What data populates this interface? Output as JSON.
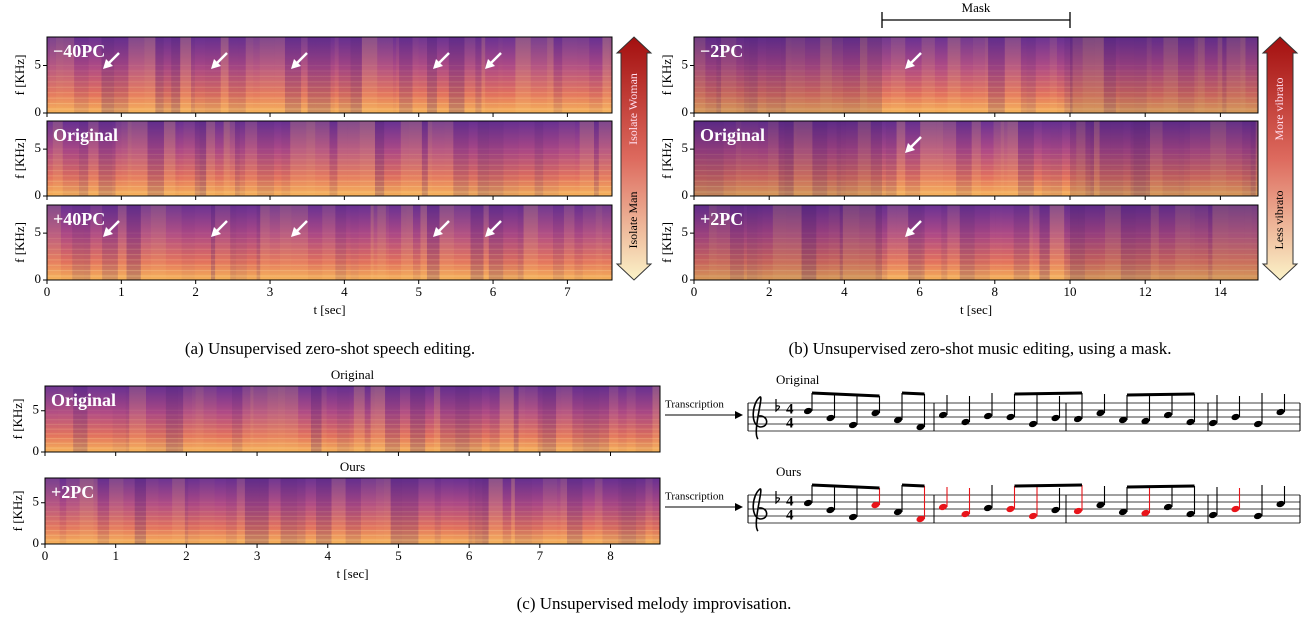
{
  "chart_data": [
    {
      "type": "spectrogram",
      "caption": "(a) Unsupervised zero-shot speech editing.",
      "xlabel": "t [sec]",
      "ylabel": "f [KHz]",
      "xlim": [
        0,
        7.6
      ],
      "xticks": [
        0,
        1,
        2,
        3,
        4,
        5,
        6,
        7
      ],
      "ylim": [
        0,
        8
      ],
      "yticks": [
        0,
        5
      ],
      "rows": [
        "−40PC",
        "Original",
        "+40PC"
      ],
      "colorbar": {
        "top": "Isolate Woman",
        "bottom": "Isolate Man"
      }
    },
    {
      "type": "spectrogram",
      "caption": "(b) Unsupervised zero-shot music editing, using a mask.",
      "xlabel": "t [sec]",
      "ylabel": "f [KHz]",
      "xlim": [
        0,
        15
      ],
      "xticks": [
        0,
        2,
        4,
        6,
        8,
        10,
        12,
        14
      ],
      "ylim": [
        0,
        8
      ],
      "yticks": [
        0,
        5
      ],
      "rows": [
        "−2PC",
        "Original",
        "+2PC"
      ],
      "mask": {
        "label": "Mask",
        "range": [
          5,
          10
        ]
      },
      "colorbar": {
        "top": "More vibrato",
        "bottom": "Less vibrato"
      }
    },
    {
      "type": "spectrogram",
      "caption": "(c) Unsupervised melody improvisation.",
      "xlabel": "t [sec]",
      "ylabel": "f [KHz]",
      "xlim": [
        0,
        8.7
      ],
      "xticks": [
        0,
        1,
        2,
        3,
        4,
        5,
        6,
        7,
        8
      ],
      "ylim": [
        0,
        8
      ],
      "yticks": [
        0,
        5
      ],
      "titles": [
        "Original",
        "Ours"
      ],
      "rows": [
        "Original",
        "+2PC"
      ]
    }
  ],
  "transcription": {
    "label": "Transcription",
    "staves": [
      "Original",
      "Ours"
    ],
    "time_signature": [
      4,
      4
    ]
  }
}
